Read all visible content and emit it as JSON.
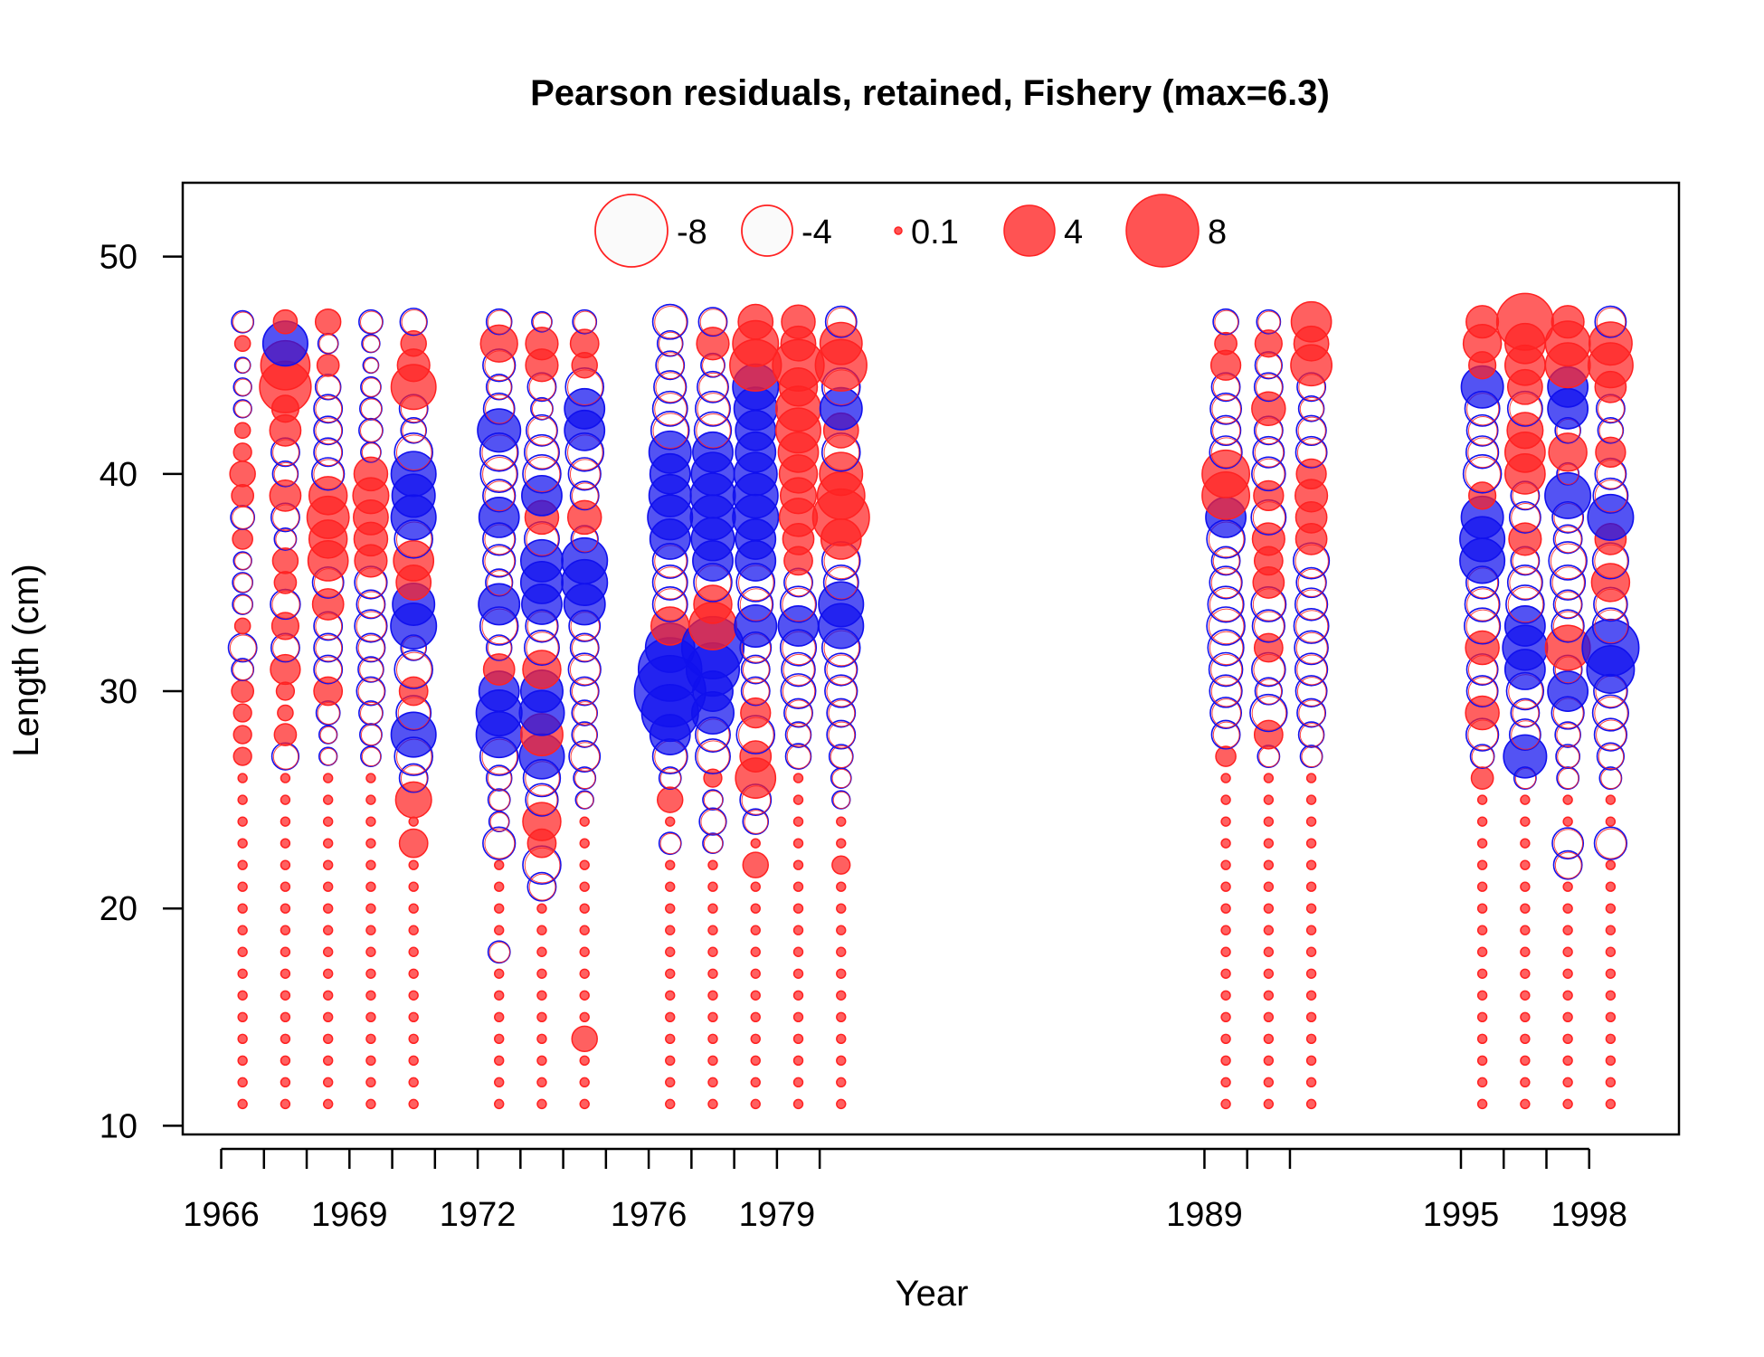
{
  "chart_data": {
    "type": "scatter",
    "subtype": "bubble",
    "title": "Pearson residuals, retained, Fishery (max=6.3)",
    "xlabel": "Year",
    "ylabel": "Length (cm)",
    "xlim": [
      1965.1,
      2000.1
    ],
    "ylim": [
      9.6,
      53.4
    ],
    "x_ticks": [
      1966,
      1967,
      1968,
      1969,
      1970,
      1971,
      1972,
      1973,
      1974,
      1975,
      1976,
      1977,
      1978,
      1979,
      1980,
      1989,
      1990,
      1991,
      1995,
      1996,
      1997,
      1998
    ],
    "x_tick_labels": [
      "1966",
      "1969",
      "1972",
      "1976",
      "1979",
      "1989",
      "1995",
      "1998"
    ],
    "y_ticks": [
      10,
      20,
      30,
      40,
      50
    ],
    "legend": {
      "placement": "top-center",
      "entries": [
        {
          "label": "-8",
          "value": -8
        },
        {
          "label": "-4",
          "value": -4
        },
        {
          "label": "0.1",
          "value": 0.1
        },
        {
          "label": "4",
          "value": 4
        },
        {
          "label": "8",
          "value": 8
        }
      ]
    },
    "colors": {
      "positive": "#ff2222",
      "negative": "#1111ee",
      "hollow_fill": "#ffffff",
      "axis": "#000000"
    },
    "columns": [
      {
        "x": 1966.5,
        "residuals": {
          "47": -0.6,
          "46": 0.3,
          "45": -0.3,
          "44": -0.4,
          "43": -0.4,
          "42": 0.3,
          "41": 0.4,
          "40": 0.8,
          "39": 0.6,
          "38": -0.7,
          "37": 0.5,
          "36": -0.4,
          "35": -0.5,
          "34": -0.5,
          "33": 0.3,
          "32": -1.0,
          "31": -0.6,
          "30": 0.6,
          "29": 0.4,
          "28": 0.4,
          "27": 0.4
        }
      },
      {
        "x": 1967.5,
        "residuals": {
          "47": 0.7,
          "46": -2.5,
          "45": 3.0,
          "44": 3.3,
          "43": 0.9,
          "42": 1.2,
          "41": -1.0,
          "40": -0.8,
          "39": 1.2,
          "38": -1.0,
          "37": -0.6,
          "36": 0.8,
          "35": 0.6,
          "34": -1.1,
          "33": 0.9,
          "32": -1.0,
          "31": 1.1,
          "30": 0.4,
          "29": 0.3,
          "28": 0.6,
          "27": -0.9
        }
      },
      {
        "x": 1968.5,
        "residuals": {
          "47": 0.8,
          "46": -0.5,
          "45": 0.6,
          "44": -0.8,
          "43": -1.0,
          "42": -1.0,
          "41": -1.0,
          "40": -1.3,
          "39": 1.8,
          "38": 2.2,
          "37": 1.8,
          "36": 2.0,
          "35": -1.2,
          "34": 1.2,
          "33": -1.0,
          "32": -1.0,
          "31": -1.0,
          "30": 1.0,
          "29": -0.7,
          "28": -0.4,
          "27": -0.4
        }
      },
      {
        "x": 1969.5,
        "residuals": {
          "47": -0.7,
          "46": -0.4,
          "45": -0.3,
          "44": -0.5,
          "43": -0.6,
          "42": -0.7,
          "41": -0.5,
          "40": 1.4,
          "39": 1.6,
          "38": 1.5,
          "37": 1.4,
          "36": 1.3,
          "35": -1.3,
          "34": -1.0,
          "33": -1.3,
          "32": -1.0,
          "31": -0.8,
          "30": -1.0,
          "29": -0.7,
          "28": -0.6,
          "27": -0.5
        }
      },
      {
        "x": 1970.5,
        "residuals": {
          "47": -0.9,
          "46": 0.8,
          "45": 1.3,
          "44": 2.5,
          "43": -1.0,
          "42": -0.8,
          "41": -1.8,
          "40": -2.5,
          "39": -2.3,
          "38": -2.5,
          "37": -1.8,
          "36": 2.0,
          "35": 1.5,
          "34": -2.2,
          "33": -2.6,
          "32": -0.8,
          "31": -1.8,
          "30": 1.0,
          "29": -1.5,
          "28": -2.5,
          "27": -1.8,
          "26": -1.0,
          "25": 1.6,
          "23": 1.0
        }
      },
      {
        "x": 1972.5,
        "residuals": {
          "47": -0.8,
          "46": 1.7,
          "45": -1.3,
          "44": -0.8,
          "43": -1.2,
          "42": -2.3,
          "41": -1.8,
          "40": -1.7,
          "39": -1.3,
          "38": -2.0,
          "37": -1.3,
          "36": -1.3,
          "35": -0.9,
          "34": -2.1,
          "33": -1.8,
          "32": -0.8,
          "31": 1.2,
          "30": -2.0,
          "29": -2.6,
          "28": -2.6,
          "27": -1.8,
          "26": -0.8,
          "25": -0.6,
          "24": -0.5,
          "23": -1.3,
          "18": -0.6
        }
      },
      {
        "x": 1973.5,
        "residuals": {
          "47": -0.5,
          "46": 1.3,
          "45": 1.3,
          "44": -1.0,
          "43": -0.6,
          "42": -1.2,
          "41": -1.5,
          "40": -1.8,
          "39": -2.0,
          "38": 1.4,
          "37": -1.5,
          "36": -2.2,
          "35": -2.2,
          "34": -2.0,
          "33": -1.3,
          "32": -1.5,
          "31": 1.8,
          "30": -2.2,
          "29": -2.5,
          "28": 2.2,
          "27": -2.5,
          "26": -1.7,
          "25": -1.3,
          "24": 1.8,
          "23": 1.0,
          "22": -1.8,
          "21": -1.0
        }
      },
      {
        "x": 1974.5,
        "residuals": {
          "47": -0.7,
          "46": 1.0,
          "45": 0.8,
          "44": -1.8,
          "43": -2.0,
          "42": -2.0,
          "41": -1.8,
          "40": -1.3,
          "39": -1.0,
          "38": 1.4,
          "37": -0.9,
          "36": -2.6,
          "35": -2.6,
          "34": -2.1,
          "33": -1.2,
          "32": -1.0,
          "31": -1.3,
          "30": -1.0,
          "29": -0.8,
          "28": -0.8,
          "27": -1.2,
          "26": -0.6,
          "25": -0.4,
          "14": 0.8
        }
      },
      {
        "x": 1976.5,
        "residuals": {
          "47": -1.5,
          "46": -0.8,
          "45": -1.0,
          "44": -1.3,
          "43": -1.5,
          "42": -1.8,
          "41": -2.2,
          "40": -2.0,
          "39": -2.2,
          "38": -2.5,
          "37": -2.0,
          "36": -1.5,
          "35": -1.5,
          "34": -1.5,
          "33": 1.8,
          "32": -3.0,
          "31": -5.0,
          "30": -6.3,
          "29": -4.0,
          "28": -2.0,
          "27": -1.5,
          "26": -0.6,
          "25": 0.8,
          "23": -0.6
        }
      },
      {
        "x": 1977.5,
        "residuals": {
          "47": -1.0,
          "46": 1.3,
          "45": -0.7,
          "44": -1.2,
          "43": -1.5,
          "42": -1.7,
          "41": -2.0,
          "40": -2.3,
          "39": -2.5,
          "38": -2.5,
          "37": -2.3,
          "36": -2.0,
          "35": -1.8,
          "34": 1.8,
          "33": 2.8,
          "32": -4.8,
          "31": -3.5,
          "30": -2.0,
          "29": -2.2,
          "28": -1.5,
          "27": -1.5,
          "26": 0.4,
          "25": -0.5,
          "24": -0.9,
          "23": -0.5
        }
      },
      {
        "x": 1978.5,
        "residuals": {
          "47": 1.5,
          "46": 2.6,
          "45": 3.3,
          "44": -2.6,
          "43": -2.3,
          "42": -2.0,
          "41": -2.0,
          "40": -2.3,
          "39": -2.5,
          "38": -2.6,
          "37": -2.0,
          "36": -2.0,
          "35": -1.8,
          "34": -1.5,
          "33": -2.2,
          "32": -1.2,
          "31": -1.0,
          "30": -1.0,
          "29": 1.1,
          "28": -1.8,
          "27": 1.2,
          "26": 2.0,
          "25": -1.2,
          "24": -0.8,
          "22": 0.8
        }
      },
      {
        "x": 1979.5,
        "residuals": {
          "47": 1.4,
          "46": 1.5,
          "45": 3.3,
          "44": 1.8,
          "43": 2.5,
          "42": 2.5,
          "41": 2.0,
          "40": 1.8,
          "39": 1.6,
          "38": 1.8,
          "37": 1.2,
          "36": 1.0,
          "35": -1.0,
          "34": -1.6,
          "33": -2.0,
          "32": -1.6,
          "31": -1.4,
          "30": -1.5,
          "29": -1.0,
          "28": -0.8,
          "27": -0.8
        }
      },
      {
        "x": 1980.5,
        "residuals": {
          "47": -1.2,
          "46": 2.2,
          "45": 3.3,
          "44": -1.8,
          "43": -2.2,
          "42": 1.5,
          "41": -1.8,
          "40": 2.3,
          "39": 2.8,
          "38": 4.0,
          "37": 2.0,
          "36": -1.8,
          "35": -1.5,
          "34": -2.5,
          "33": -2.5,
          "32": -1.8,
          "31": -1.3,
          "30": -1.3,
          "29": -1.0,
          "28": -1.0,
          "27": -0.7,
          "26": -0.5,
          "25": -0.4,
          "22": 0.4
        }
      },
      {
        "x": 1989.5,
        "residuals": {
          "47": -0.8,
          "46": 0.6,
          "45": 1.1,
          "44": -1.0,
          "43": -1.2,
          "42": -1.1,
          "41": -1.3,
          "40": 2.8,
          "39": 2.8,
          "38": -2.0,
          "37": -1.8,
          "36": -1.0,
          "35": -1.3,
          "34": -1.6,
          "33": -1.8,
          "32": -1.6,
          "31": -1.4,
          "30": -1.3,
          "29": -1.2,
          "28": -1.0,
          "27": 0.5
        }
      },
      {
        "x": 1990.5,
        "residuals": {
          "47": -0.7,
          "46": 0.9,
          "45": -0.9,
          "44": -1.0,
          "43": 1.4,
          "42": -1.0,
          "41": -1.2,
          "40": -1.4,
          "39": 1.1,
          "38": -1.5,
          "37": 1.3,
          "36": 1.0,
          "35": 1.2,
          "34": -1.5,
          "33": -1.3,
          "32": 1.0,
          "31": -1.4,
          "30": -0.9,
          "29": -1.7,
          "28": 1.0,
          "27": -0.6
        }
      },
      {
        "x": 1991.5,
        "residuals": {
          "47": 2.0,
          "46": 1.5,
          "45": 2.1,
          "44": -1.0,
          "43": -0.8,
          "42": -1.1,
          "41": -1.2,
          "40": 1.1,
          "39": 1.3,
          "38": 1.2,
          "37": 1.2,
          "36": -1.6,
          "35": -1.1,
          "34": -1.3,
          "33": -1.5,
          "32": -1.4,
          "31": -1.3,
          "30": -1.2,
          "29": -1.0,
          "28": -0.8,
          "27": -0.6
        }
      },
      {
        "x": 1995.5,
        "residuals": {
          "47": 1.3,
          "46": 1.8,
          "45": 0.9,
          "44": -2.2,
          "43": -1.5,
          "42": -1.2,
          "41": -1.3,
          "40": -1.8,
          "39": 0.9,
          "38": -2.2,
          "37": -2.5,
          "36": -2.5,
          "35": -1.3,
          "34": -1.5,
          "33": -1.6,
          "32": 1.4,
          "31": -1.2,
          "30": -1.2,
          "29": 1.4,
          "28": -1.3,
          "27": -0.7,
          "26": 0.6
        }
      },
      {
        "x": 1996.5,
        "residuals": {
          "47": 4.0,
          "46": 2.0,
          "45": 2.0,
          "44": 1.5,
          "43": -1.5,
          "42": 1.6,
          "41": 2.0,
          "40": 2.0,
          "39": -1.0,
          "38": -1.2,
          "37": 1.3,
          "36": -1.0,
          "35": -1.5,
          "34": -1.8,
          "33": -2.0,
          "32": -2.5,
          "31": -2.0,
          "30": -1.7,
          "29": -1.0,
          "28": -1.2,
          "27": -2.3,
          "26": -0.6
        }
      },
      {
        "x": 1997.5,
        "residuals": {
          "47": 1.3,
          "46": 2.5,
          "45": 2.5,
          "44": -2.0,
          "43": -2.0,
          "42": -0.8,
          "41": 1.8,
          "40": -0.6,
          "39": -2.6,
          "38": -1.2,
          "37": -1.0,
          "36": -1.8,
          "35": -1.5,
          "34": -1.0,
          "33": -1.3,
          "32": 2.5,
          "31": -1.0,
          "30": -2.0,
          "29": -1.3,
          "28": -0.8,
          "27": -0.7,
          "26": -0.6,
          "23": -1.2,
          "22": -1.0
        }
      },
      {
        "x": 1998.5,
        "residuals": {
          "47": -1.2,
          "46": 2.3,
          "45": 2.5,
          "44": 1.2,
          "43": -1.0,
          "42": -0.8,
          "41": 1.1,
          "40": -1.2,
          "39": -1.5,
          "38": -2.6,
          "37": 1.2,
          "36": -1.6,
          "35": 1.8,
          "34": -1.4,
          "33": -1.6,
          "32": -4.0,
          "31": -2.8,
          "30": -1.4,
          "29": -1.6,
          "28": -1.3,
          "27": -0.9,
          "26": -0.6,
          "23": -1.3
        }
      }
    ],
    "lengths": [
      11,
      12,
      13,
      14,
      15,
      16,
      17,
      18,
      19,
      20,
      21,
      22,
      23,
      24,
      25,
      26,
      27,
      28,
      29,
      30,
      31,
      32,
      33,
      34,
      35,
      36,
      37,
      38,
      39,
      40,
      41,
      42,
      43,
      44,
      45,
      46,
      47
    ],
    "default_small_residual": 0.1
  }
}
